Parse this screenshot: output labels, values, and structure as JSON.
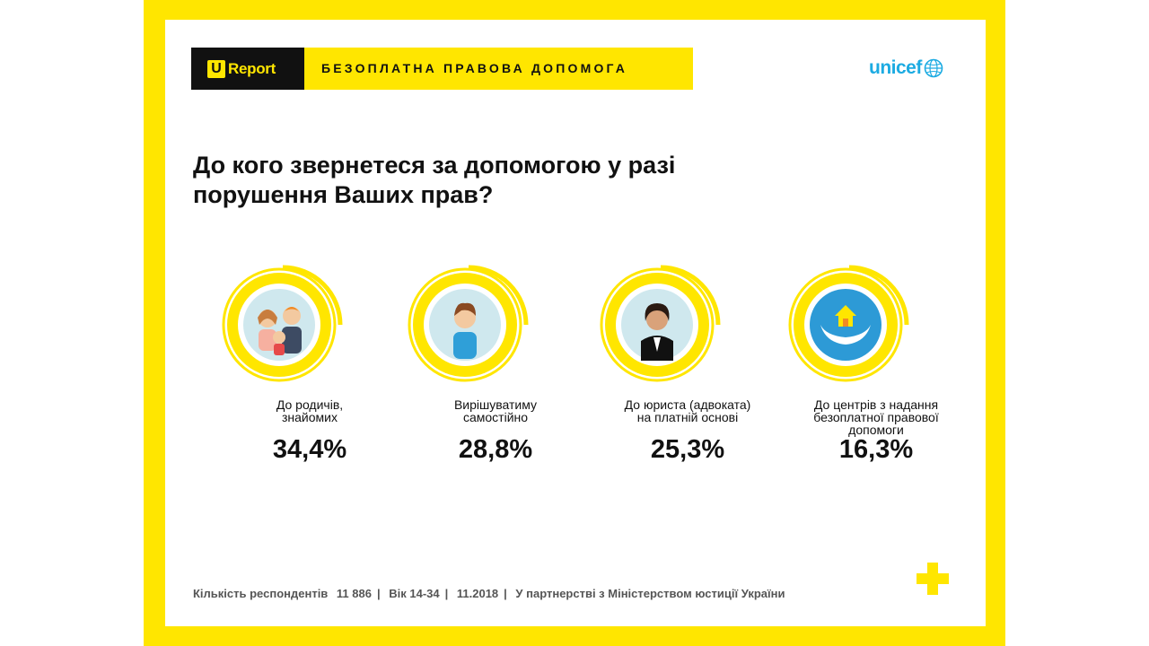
{
  "header": {
    "logo_u": "U",
    "logo_text": "Report",
    "title": "БЕЗОПЛАТНА ПРАВОВА ДОПОМОГА",
    "partner_logo": "unicef"
  },
  "question": "До кого звернетеся за допомогою у разі порушення Ваших прав?",
  "colors": {
    "accent": "#ffe600",
    "text": "#111111",
    "unicef": "#1cabe2"
  },
  "chart_data": {
    "type": "bar",
    "categories": [
      "До родичів, знайомих",
      "Вирішуватиму самостійно",
      "До юриста (адвоката) на платній основі",
      "До центрів з надання безоплатної правової допомоги"
    ],
    "values": [
      34.4,
      28.8,
      25.3,
      16.3
    ],
    "unit": "%"
  },
  "items": [
    {
      "label_lines": [
        "До родичів,",
        "знайомих"
      ],
      "value": "34,4%",
      "icon": "family-icon"
    },
    {
      "label_lines": [
        "Вирішуватиму",
        "самостійно"
      ],
      "value": "28,8%",
      "icon": "young-man-icon"
    },
    {
      "label_lines": [
        "До юриста (адвоката)",
        "на платній основі"
      ],
      "value": "25,3%",
      "icon": "lawyer-icon"
    },
    {
      "label_lines": [
        "До центрів з надання",
        "безоплатної правової",
        "допомоги"
      ],
      "value": "16,3%",
      "icon": "house-in-hands-icon"
    }
  ],
  "footer": {
    "respondents_label": "Кількість респондентів",
    "respondents_value": "11 886",
    "age": "Вік 14-34",
    "date": "11.2018",
    "partner": "У партнерстві з Міністерством юстиції України"
  }
}
